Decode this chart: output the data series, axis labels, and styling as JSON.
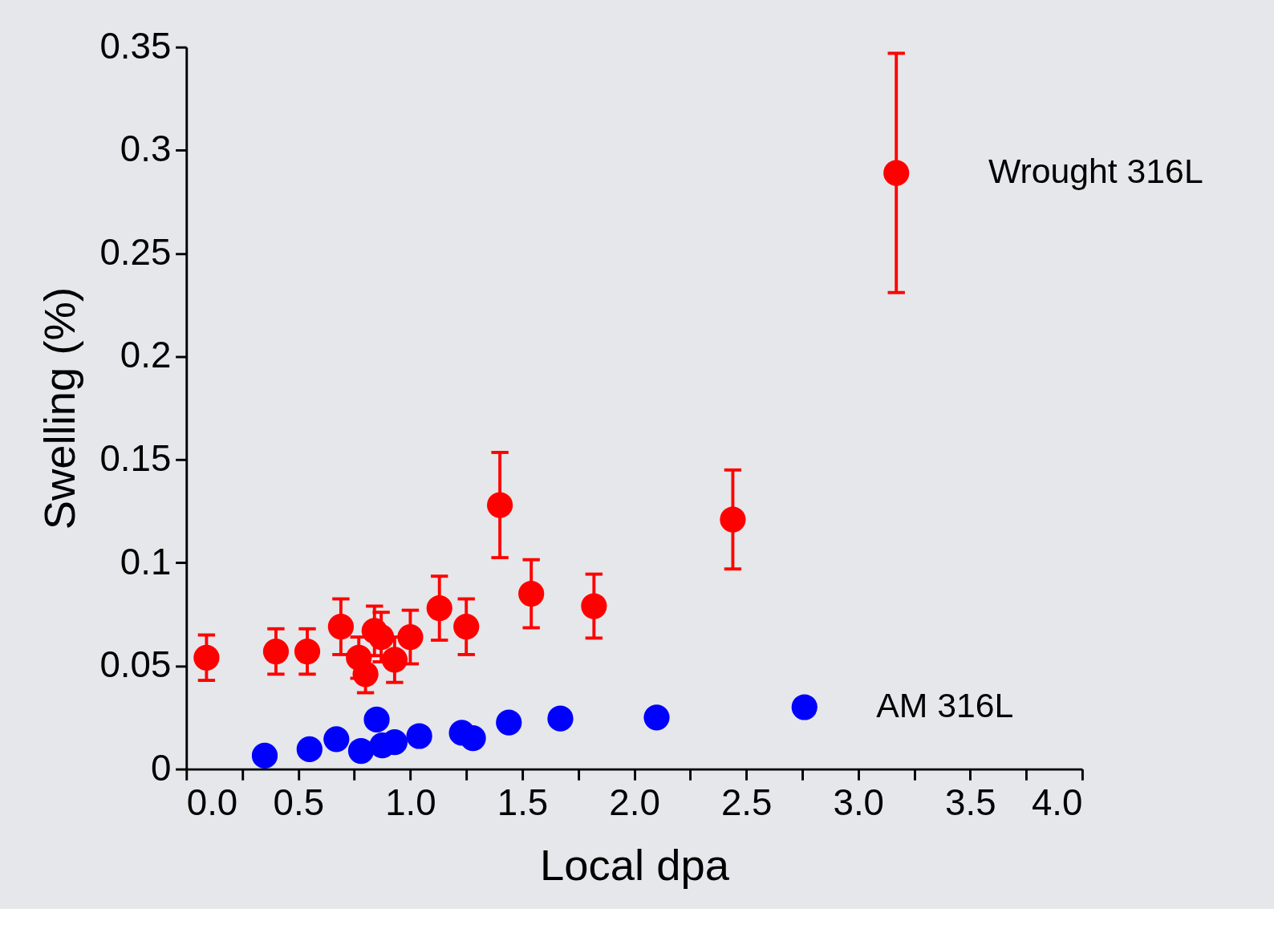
{
  "chart_data": {
    "type": "scatter",
    "xlabel": "Local dpa",
    "ylabel": "Swelling (%)",
    "xlim": [
      0,
      4
    ],
    "ylim": [
      0,
      0.35
    ],
    "xticks": [
      {
        "value": 0,
        "label": "0.0"
      },
      {
        "value": 0.25,
        "label": null
      },
      {
        "value": 0.5,
        "label": "0.5"
      },
      {
        "value": 0.75,
        "label": null
      },
      {
        "value": 1,
        "label": "1.0"
      },
      {
        "value": 1.25,
        "label": null
      },
      {
        "value": 1.5,
        "label": "1.5"
      },
      {
        "value": 1.75,
        "label": null
      },
      {
        "value": 2,
        "label": "2.0"
      },
      {
        "value": 2.25,
        "label": null
      },
      {
        "value": 2.5,
        "label": "2.5"
      },
      {
        "value": 2.75,
        "label": null
      },
      {
        "value": 3,
        "label": "3.0"
      },
      {
        "value": 3.25,
        "label": null
      },
      {
        "value": 3.5,
        "label": "3.5"
      },
      {
        "value": 3.75,
        "label": null
      },
      {
        "value": 4,
        "label": "4.0"
      }
    ],
    "yticks": [
      0,
      0.05,
      0.1,
      0.15,
      0.2,
      0.25,
      0.3,
      0.35
    ],
    "grid": false,
    "marker": "circle",
    "series": [
      {
        "name": "Wrought 316L",
        "color": "#ff0000",
        "x": [
          0.09,
          0.4,
          0.54,
          0.69,
          0.77,
          0.8,
          0.84,
          0.87,
          0.93,
          1.0,
          1.13,
          1.25,
          1.4,
          1.54,
          1.82,
          2.44,
          3.17
        ],
        "values": [
          0.054,
          0.057,
          0.057,
          0.069,
          0.054,
          0.046,
          0.067,
          0.064,
          0.053,
          0.064,
          0.078,
          0.069,
          0.128,
          0.085,
          0.079,
          0.121,
          0.289
        ],
        "errors": [
          0.011,
          0.011,
          0.011,
          0.0135,
          0.01,
          0.009,
          0.012,
          0.012,
          0.011,
          0.013,
          0.0155,
          0.0135,
          0.0255,
          0.0165,
          0.0155,
          0.024,
          0.058
        ]
      },
      {
        "name": "AM 316L",
        "color": "#0000ff",
        "x": [
          0.35,
          0.55,
          0.67,
          0.78,
          0.85,
          0.875,
          0.93,
          1.04,
          1.23,
          1.28,
          1.44,
          1.67,
          2.1,
          2.76
        ],
        "values": [
          0.0065,
          0.0096,
          0.0145,
          0.0088,
          0.024,
          0.0115,
          0.013,
          0.016,
          0.0176,
          0.015,
          0.0226,
          0.0245,
          0.025,
          0.03
        ]
      }
    ]
  }
}
